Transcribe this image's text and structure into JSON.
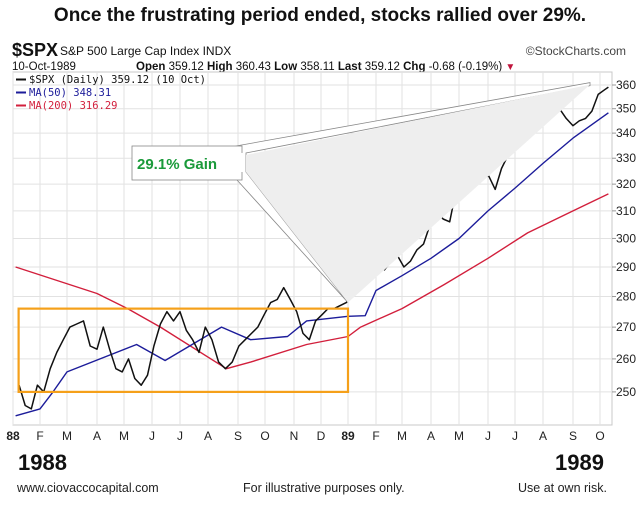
{
  "headline": "Once the frustrating period ended, stocks rallied over 29%.",
  "header": {
    "symbol": "$SPX",
    "name": "S&P 500 Large Cap Index",
    "exchange": "INDX",
    "brand": "©StockCharts.com",
    "date": "10-Oct-1989",
    "open_label": "Open",
    "open": "359.12",
    "high_label": "High",
    "high": "360.43",
    "low_label": "Low",
    "low": "358.11",
    "last_label": "Last",
    "last": "359.12",
    "chg_label": "Chg",
    "chg": "-0.68 (-0.19%)",
    "chg_icon": "triangle-down-icon"
  },
  "colors": {
    "price": "#111111",
    "ma50": "#1c1c9a",
    "ma200": "#d21f3c",
    "box": "#f5a01a",
    "annotation_text": "#1a9a3a",
    "grid": "#e2e2e2"
  },
  "chart_data": {
    "type": "line",
    "y_scale": "log",
    "ylim": [
      242,
      362
    ],
    "xlim": [
      "1988-01-01",
      "1989-10-12"
    ],
    "grid": true,
    "legend_placement": "top-left",
    "y_ticks": [
      250,
      260,
      270,
      280,
      290,
      300,
      310,
      320,
      330,
      340,
      350,
      360
    ],
    "x_ticks": [
      {
        "date": "1988-01-01",
        "label": "88",
        "bold": true
      },
      {
        "date": "1988-02-01",
        "label": "F"
      },
      {
        "date": "1988-03-01",
        "label": "M"
      },
      {
        "date": "1988-04-01",
        "label": "A"
      },
      {
        "date": "1988-05-01",
        "label": "M"
      },
      {
        "date": "1988-06-01",
        "label": "J"
      },
      {
        "date": "1988-07-01",
        "label": "J"
      },
      {
        "date": "1988-08-01",
        "label": "A"
      },
      {
        "date": "1988-09-01",
        "label": "S"
      },
      {
        "date": "1988-10-01",
        "label": "O"
      },
      {
        "date": "1988-11-01",
        "label": "N"
      },
      {
        "date": "1988-12-01",
        "label": "D"
      },
      {
        "date": "1989-01-01",
        "label": "89",
        "bold": true
      },
      {
        "date": "1989-02-01",
        "label": "F"
      },
      {
        "date": "1989-03-01",
        "label": "M"
      },
      {
        "date": "1989-04-01",
        "label": "A"
      },
      {
        "date": "1989-05-01",
        "label": "M"
      },
      {
        "date": "1989-06-01",
        "label": "J"
      },
      {
        "date": "1989-07-01",
        "label": "J"
      },
      {
        "date": "1989-08-01",
        "label": "A"
      },
      {
        "date": "1989-09-01",
        "label": "S"
      },
      {
        "date": "1989-10-01",
        "label": "O"
      }
    ],
    "legend": [
      {
        "text": "$SPX (Daily) 359.12 (10 Oct)",
        "series": "price"
      },
      {
        "text": "MA(50) 348.31",
        "series": "ma50"
      },
      {
        "text": "MA(200) 316.29",
        "series": "ma200"
      }
    ],
    "series": [
      {
        "name": "$SPX (Daily)",
        "key": "price",
        "x": [
          "1988-01-08",
          "1988-01-15",
          "1988-01-22",
          "1988-01-29",
          "1988-02-05",
          "1988-02-12",
          "1988-02-19",
          "1988-02-26",
          "1988-03-04",
          "1988-03-11",
          "1988-03-18",
          "1988-03-25",
          "1988-04-01",
          "1988-04-08",
          "1988-04-15",
          "1988-04-22",
          "1988-04-29",
          "1988-05-06",
          "1988-05-13",
          "1988-05-20",
          "1988-05-27",
          "1988-06-03",
          "1988-06-10",
          "1988-06-17",
          "1988-06-24",
          "1988-07-01",
          "1988-07-08",
          "1988-07-15",
          "1988-07-22",
          "1988-07-29",
          "1988-08-05",
          "1988-08-12",
          "1988-08-19",
          "1988-08-26",
          "1988-09-02",
          "1988-09-09",
          "1988-09-16",
          "1988-09-23",
          "1988-09-30",
          "1988-10-07",
          "1988-10-14",
          "1988-10-21",
          "1988-10-28",
          "1988-11-04",
          "1988-11-11",
          "1988-11-18",
          "1988-11-25",
          "1988-12-02",
          "1988-12-09",
          "1988-12-16",
          "1988-12-23",
          "1988-12-30",
          "1989-01-06",
          "1989-01-13",
          "1989-01-20",
          "1989-01-27",
          "1989-02-03",
          "1989-02-10",
          "1989-02-17",
          "1989-02-24",
          "1989-03-03",
          "1989-03-10",
          "1989-03-17",
          "1989-03-24",
          "1989-03-31",
          "1989-04-07",
          "1989-04-14",
          "1989-04-21",
          "1989-04-28",
          "1989-05-05",
          "1989-05-12",
          "1989-05-19",
          "1989-05-26",
          "1989-06-02",
          "1989-06-09",
          "1989-06-16",
          "1989-06-23",
          "1989-06-30",
          "1989-07-07",
          "1989-07-14",
          "1989-07-21",
          "1989-07-28",
          "1989-08-04",
          "1989-08-11",
          "1989-08-18",
          "1989-08-25",
          "1989-09-01",
          "1989-09-08",
          "1989-09-15",
          "1989-09-22",
          "1989-09-29",
          "1989-10-06",
          "1989-10-10"
        ],
        "values": [
          252,
          246,
          245,
          252,
          250,
          257,
          262,
          266,
          270,
          271,
          272,
          264,
          263,
          270,
          263,
          257,
          256,
          260,
          254,
          252,
          255,
          264,
          271,
          275,
          272,
          275,
          269,
          266,
          262,
          270,
          266,
          259,
          257,
          259,
          264,
          266,
          268,
          270,
          274,
          278,
          279,
          283,
          279,
          275,
          268,
          266,
          272,
          274,
          276,
          276,
          277,
          278,
          281,
          287,
          296,
          299,
          296,
          289,
          292,
          294,
          290,
          292,
          296,
          298,
          305,
          310,
          307,
          306,
          318,
          322,
          323,
          326,
          323,
          323,
          318,
          326,
          331,
          336,
          345,
          346,
          348,
          343,
          349,
          352,
          350,
          346,
          343,
          345,
          346,
          349,
          356,
          358,
          359.12
        ]
      },
      {
        "name": "MA(50)",
        "key": "ma50",
        "x": [
          "1988-01-04",
          "1988-02-01",
          "1988-02-15",
          "1988-03-01",
          "1988-05-15",
          "1988-06-15",
          "1988-08-15",
          "1988-09-15",
          "1988-10-25",
          "1988-11-15",
          "1989-01-01",
          "1989-01-20",
          "1989-02-01",
          "1989-03-01",
          "1989-04-01",
          "1989-05-01",
          "1989-06-01",
          "1989-07-01",
          "1989-08-01",
          "1989-09-01",
          "1989-10-10"
        ],
        "values": [
          243,
          245,
          250,
          256,
          264.5,
          259.5,
          270,
          266,
          267,
          272,
          273.5,
          273.7,
          282,
          287,
          293,
          300,
          310,
          318.5,
          328,
          338,
          348.31
        ]
      },
      {
        "name": "MA(200)",
        "key": "ma200",
        "x": [
          "1988-01-04",
          "1988-04-01",
          "1988-05-05",
          "1988-06-10",
          "1988-08-20",
          "1988-09-15",
          "1988-11-15",
          "1989-01-01",
          "1989-01-15",
          "1989-03-01",
          "1989-04-15",
          "1989-06-01",
          "1989-07-15",
          "1989-09-01",
          "1989-10-10"
        ],
        "values": [
          290,
          281,
          276,
          270,
          257,
          259,
          264.5,
          267,
          270,
          276,
          284,
          293,
          302,
          310,
          316.29
        ]
      }
    ],
    "annotations": {
      "gain_label": "29.1% Gain",
      "range_box": {
        "x": [
          "1988-01-04",
          "1989-01-01"
        ],
        "y": [
          250,
          276
        ]
      },
      "callout_from": {
        "date": "1989-01-01",
        "value": 278
      },
      "callout_to": {
        "date": "1989-10-01",
        "value": 361
      }
    }
  },
  "footer": {
    "year_left": "1988",
    "year_right": "1989",
    "website": "www.ciovaccocapital.com",
    "disclaimer": "For illustrative purposes only.",
    "risk": "Use at own risk."
  }
}
